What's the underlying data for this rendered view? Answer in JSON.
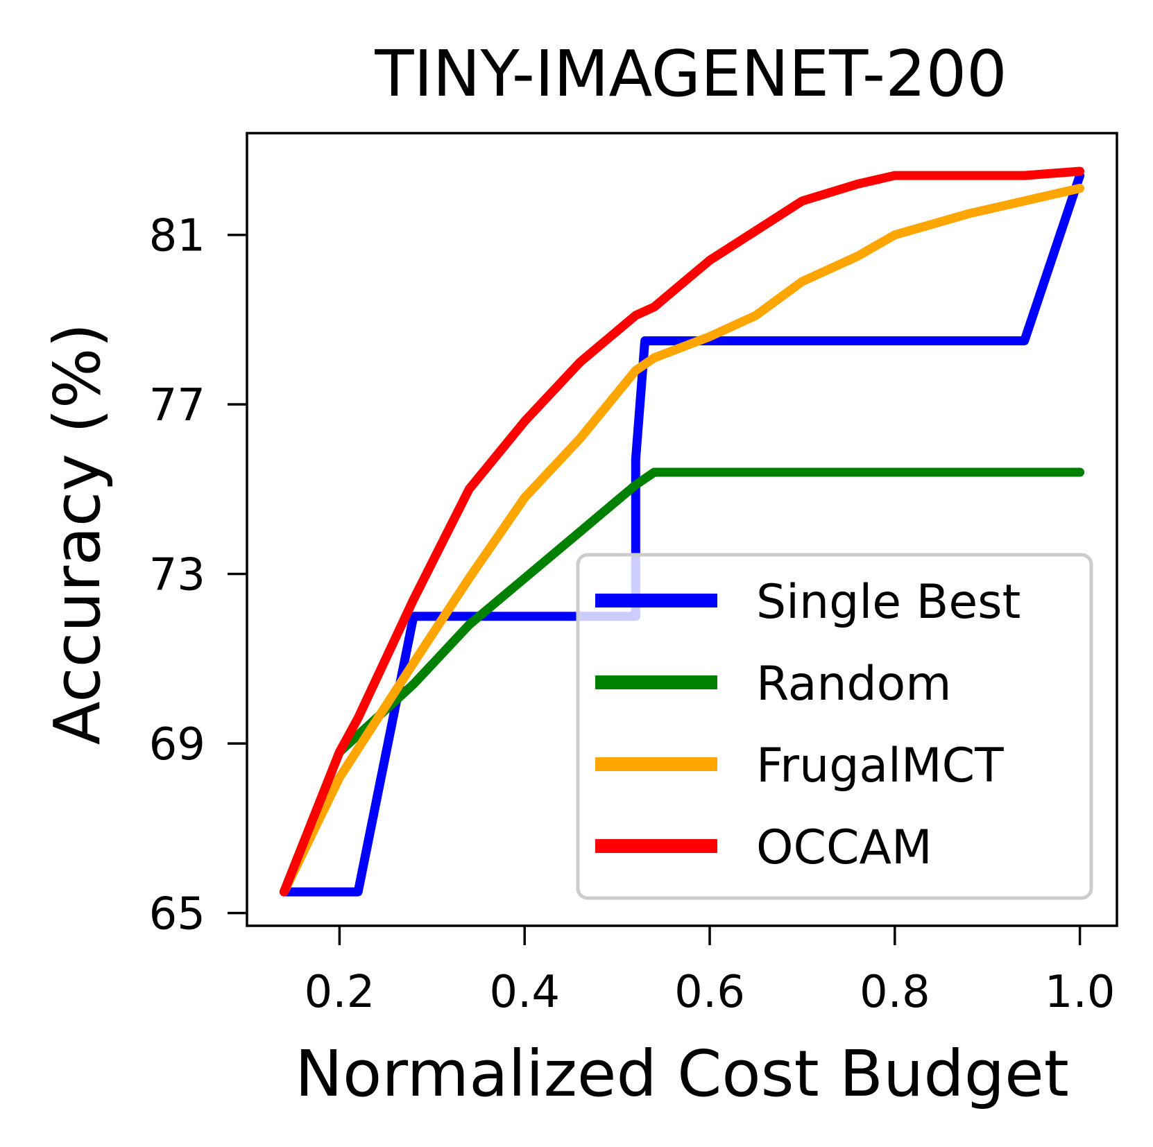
{
  "chart_data": {
    "type": "line",
    "title": "TINY-IMAGENET-200",
    "xlabel": "Normalized Cost Budget",
    "ylabel": "Accuracy (%)",
    "xlim": [
      0.1,
      1.04
    ],
    "ylim": [
      64.7,
      83.4
    ],
    "xticks": [
      0.2,
      0.4,
      0.6,
      0.8,
      1.0
    ],
    "xtick_labels": [
      "0.2",
      "0.4",
      "0.6",
      "0.8",
      "1.0"
    ],
    "yticks": [
      65,
      69,
      73,
      77,
      81
    ],
    "ytick_labels": [
      "65",
      "69",
      "73",
      "77",
      "81"
    ],
    "grid": false,
    "legend_position": "lower-right",
    "series": [
      {
        "name": "Single Best",
        "color": "#0000ff",
        "x": [
          0.14,
          0.22,
          0.28,
          0.52,
          0.52,
          0.53,
          0.94,
          1.0
        ],
        "y": [
          65.5,
          65.5,
          72.0,
          72.0,
          75.7,
          78.5,
          78.5,
          82.4
        ]
      },
      {
        "name": "Random",
        "color": "#008000",
        "x": [
          0.14,
          0.2,
          0.28,
          0.34,
          0.4,
          0.46,
          0.52,
          0.54,
          0.6,
          0.7,
          0.8,
          0.9,
          1.0
        ],
        "y": [
          65.5,
          68.8,
          70.4,
          71.8,
          72.9,
          74.0,
          75.1,
          75.4,
          75.4,
          75.4,
          75.4,
          75.4,
          75.4
        ]
      },
      {
        "name": "FrugalMCT",
        "color": "#ffa500",
        "x": [
          0.14,
          0.2,
          0.28,
          0.34,
          0.4,
          0.46,
          0.52,
          0.54,
          0.6,
          0.65,
          0.7,
          0.76,
          0.8,
          0.88,
          0.94,
          1.0
        ],
        "y": [
          65.5,
          68.2,
          70.9,
          72.9,
          74.8,
          76.2,
          77.8,
          78.1,
          78.6,
          79.1,
          79.9,
          80.5,
          81.0,
          81.5,
          81.8,
          82.1
        ]
      },
      {
        "name": "OCCAM",
        "color": "#ff0000",
        "x": [
          0.14,
          0.2,
          0.22,
          0.28,
          0.34,
          0.4,
          0.46,
          0.52,
          0.54,
          0.6,
          0.65,
          0.7,
          0.76,
          0.8,
          0.88,
          0.94,
          1.0
        ],
        "y": [
          65.5,
          68.8,
          69.6,
          72.4,
          75.0,
          76.6,
          78.0,
          79.1,
          79.3,
          80.4,
          81.1,
          81.8,
          82.2,
          82.4,
          82.4,
          82.4,
          82.5
        ]
      }
    ]
  }
}
